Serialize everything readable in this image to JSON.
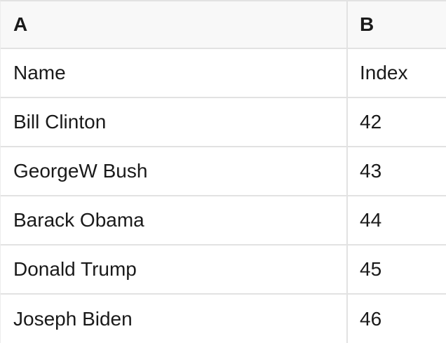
{
  "table": {
    "column_headers": {
      "a": "A",
      "b": "B"
    },
    "rows": [
      {
        "a": "Name",
        "b": "Index"
      },
      {
        "a": "Bill Clinton",
        "b": "42"
      },
      {
        "a": "GeorgeW Bush",
        "b": "43"
      },
      {
        "a": "Barack Obama",
        "b": "44"
      },
      {
        "a": "Donald Trump",
        "b": "45"
      },
      {
        "a": "Joseph Biden",
        "b": "46"
      }
    ],
    "colors": {
      "header_background": "#f8f8f8",
      "row_background": "#ffffff",
      "divider": "#e2e2e2",
      "left_border": "#ececec",
      "text": "#1a1a1a"
    }
  }
}
